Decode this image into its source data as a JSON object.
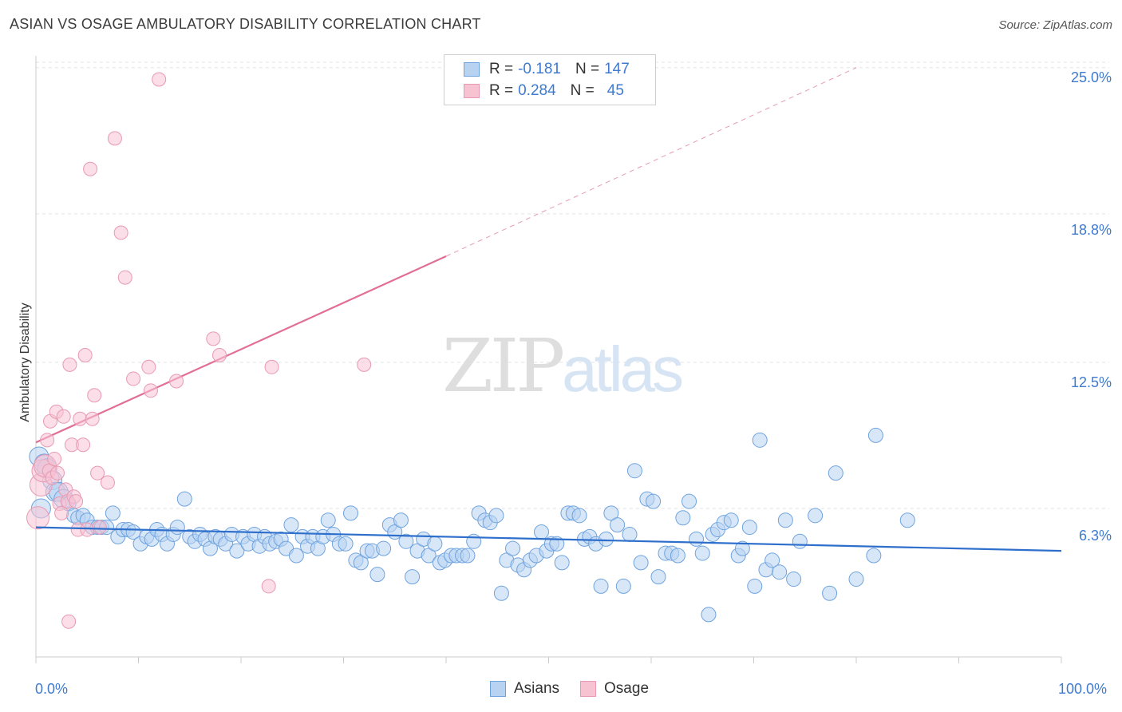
{
  "title": "ASIAN VS OSAGE AMBULATORY DISABILITY CORRELATION CHART",
  "source": "Source: ZipAtlas.com",
  "watermark": {
    "zip": "ZIP",
    "atlas": "atlas"
  },
  "legend": {
    "rows": [
      {
        "r_label": "R =",
        "r_value": "-0.181",
        "n_label": "N =",
        "n_value": "147"
      },
      {
        "r_label": "R =",
        "r_value": "0.284",
        "n_label": "N =",
        "n_value": "45"
      }
    ]
  },
  "bottom_legend": [
    "Asians",
    "Osage"
  ],
  "colors": {
    "asians_fill": "#b8d3f2",
    "asians_stroke": "#6fa3de",
    "asians_line": "#2f6fcc",
    "osage_fill": "#f7c3d3",
    "osage_stroke": "#e89ab3",
    "osage_line": "#e26d96",
    "tick_text": "#3f7ad0",
    "grid": "#e3e3e3"
  },
  "chart_data": {
    "type": "scatter",
    "title": "ASIAN VS OSAGE AMBULATORY DISABILITY CORRELATION CHART",
    "xlabel": "",
    "ylabel": "Ambulatory Disability",
    "x_tick_labels": [
      "0.0%",
      "100.0%"
    ],
    "y_tick_labels": [
      "6.3%",
      "12.5%",
      "18.8%",
      "25.0%"
    ],
    "y_ticks": [
      6.3,
      12.5,
      18.8,
      25.0
    ],
    "xlim": [
      0,
      100
    ],
    "ylim": [
      0,
      25.5
    ],
    "grid": true,
    "series": [
      {
        "name": "Asians",
        "R": -0.181,
        "N": 147,
        "trend": {
          "x": [
            0,
            100
          ],
          "y": [
            5.5,
            4.5
          ],
          "style": "solid"
        },
        "points": [
          [
            0.3,
            8.5
          ],
          [
            0.8,
            8.2
          ],
          [
            1.1,
            8.0
          ],
          [
            1.6,
            7.5
          ],
          [
            1.9,
            7.0
          ],
          [
            2.2,
            7.0
          ],
          [
            2.7,
            6.7
          ],
          [
            3.2,
            6.5
          ],
          [
            3.7,
            6.0
          ],
          [
            4.1,
            5.9
          ],
          [
            4.6,
            6.0
          ],
          [
            5.0,
            5.8
          ],
          [
            5.5,
            5.5
          ],
          [
            6.0,
            5.5
          ],
          [
            6.4,
            5.5
          ],
          [
            6.9,
            5.5
          ],
          [
            7.5,
            6.1
          ],
          [
            8.0,
            5.1
          ],
          [
            8.5,
            5.4
          ],
          [
            9.0,
            5.4
          ],
          [
            9.5,
            5.3
          ],
          [
            10.2,
            4.8
          ],
          [
            10.8,
            5.1
          ],
          [
            11.3,
            5.0
          ],
          [
            11.8,
            5.4
          ],
          [
            12.3,
            5.2
          ],
          [
            12.8,
            4.8
          ],
          [
            13.4,
            5.2
          ],
          [
            13.8,
            5.5
          ],
          [
            14.5,
            6.7
          ],
          [
            15.0,
            5.1
          ],
          [
            15.5,
            4.9
          ],
          [
            16.0,
            5.2
          ],
          [
            16.5,
            5.0
          ],
          [
            17.0,
            4.6
          ],
          [
            17.5,
            5.1
          ],
          [
            18.0,
            5.0
          ],
          [
            18.5,
            4.8
          ],
          [
            19.1,
            5.2
          ],
          [
            19.6,
            4.5
          ],
          [
            20.2,
            5.1
          ],
          [
            20.7,
            4.8
          ],
          [
            21.3,
            5.2
          ],
          [
            21.8,
            4.7
          ],
          [
            22.3,
            5.1
          ],
          [
            22.8,
            4.8
          ],
          [
            23.4,
            4.9
          ],
          [
            23.9,
            5.0
          ],
          [
            24.4,
            4.6
          ],
          [
            24.9,
            5.6
          ],
          [
            25.4,
            4.3
          ],
          [
            26.0,
            5.1
          ],
          [
            26.5,
            4.7
          ],
          [
            27.0,
            5.1
          ],
          [
            27.5,
            4.6
          ],
          [
            28.0,
            5.1
          ],
          [
            28.5,
            5.8
          ],
          [
            29.0,
            5.2
          ],
          [
            29.6,
            4.8
          ],
          [
            30.2,
            4.8
          ],
          [
            30.7,
            6.1
          ],
          [
            31.2,
            4.1
          ],
          [
            31.7,
            4.0
          ],
          [
            32.3,
            4.5
          ],
          [
            32.8,
            4.5
          ],
          [
            33.3,
            3.5
          ],
          [
            33.9,
            4.6
          ],
          [
            34.5,
            5.6
          ],
          [
            35.0,
            5.3
          ],
          [
            35.6,
            5.8
          ],
          [
            36.1,
            4.9
          ],
          [
            36.7,
            3.4
          ],
          [
            37.2,
            4.5
          ],
          [
            37.8,
            5.0
          ],
          [
            38.3,
            4.3
          ],
          [
            38.9,
            4.8
          ],
          [
            39.4,
            4.0
          ],
          [
            39.9,
            4.1
          ],
          [
            40.5,
            4.3
          ],
          [
            41.0,
            4.3
          ],
          [
            41.6,
            4.3
          ],
          [
            42.1,
            4.3
          ],
          [
            42.7,
            4.9
          ],
          [
            43.2,
            6.1
          ],
          [
            43.8,
            5.8
          ],
          [
            44.3,
            5.7
          ],
          [
            44.9,
            6.0
          ],
          [
            45.4,
            2.7
          ],
          [
            45.9,
            4.1
          ],
          [
            46.5,
            4.6
          ],
          [
            47.0,
            3.9
          ],
          [
            47.6,
            3.7
          ],
          [
            48.2,
            4.1
          ],
          [
            48.8,
            4.3
          ],
          [
            49.3,
            5.3
          ],
          [
            49.8,
            4.5
          ],
          [
            50.3,
            4.8
          ],
          [
            50.8,
            4.8
          ],
          [
            51.3,
            4.0
          ],
          [
            51.9,
            6.1
          ],
          [
            52.4,
            6.1
          ],
          [
            53.0,
            6.0
          ],
          [
            53.5,
            5.0
          ],
          [
            54.0,
            5.1
          ],
          [
            54.6,
            4.8
          ],
          [
            55.1,
            3.0
          ],
          [
            55.6,
            5.0
          ],
          [
            56.1,
            6.1
          ],
          [
            56.7,
            5.6
          ],
          [
            57.3,
            3.0
          ],
          [
            57.9,
            5.2
          ],
          [
            58.4,
            7.9
          ],
          [
            59.0,
            4.0
          ],
          [
            59.6,
            6.7
          ],
          [
            60.2,
            6.6
          ],
          [
            60.7,
            3.4
          ],
          [
            61.4,
            4.4
          ],
          [
            62.0,
            4.4
          ],
          [
            62.6,
            4.3
          ],
          [
            63.1,
            5.9
          ],
          [
            63.7,
            6.6
          ],
          [
            64.4,
            5.0
          ],
          [
            65.0,
            4.4
          ],
          [
            65.6,
            1.8
          ],
          [
            66.0,
            5.2
          ],
          [
            66.5,
            5.4
          ],
          [
            67.1,
            5.7
          ],
          [
            67.8,
            5.8
          ],
          [
            68.5,
            4.3
          ],
          [
            68.9,
            4.6
          ],
          [
            69.6,
            5.5
          ],
          [
            70.1,
            3.0
          ],
          [
            70.6,
            9.2
          ],
          [
            71.2,
            3.7
          ],
          [
            71.8,
            4.1
          ],
          [
            72.5,
            3.6
          ],
          [
            73.1,
            5.8
          ],
          [
            73.9,
            3.3
          ],
          [
            74.5,
            4.9
          ],
          [
            76.0,
            6.0
          ],
          [
            77.4,
            2.7
          ],
          [
            78.0,
            7.8
          ],
          [
            80.0,
            3.3
          ],
          [
            81.7,
            4.3
          ],
          [
            81.9,
            9.4
          ],
          [
            85.0,
            5.8
          ],
          [
            0.5,
            6.3
          ]
        ]
      },
      {
        "name": "Osage",
        "R": 0.284,
        "N": 45,
        "trend": {
          "x": [
            0,
            40,
            80
          ],
          "y": [
            9.1,
            17.0,
            25.0
          ],
          "style": "solid-then-dashed"
        },
        "points": [
          [
            0.2,
            5.9
          ],
          [
            0.5,
            7.3
          ],
          [
            0.7,
            7.9
          ],
          [
            0.9,
            8.1
          ],
          [
            1.1,
            9.2
          ],
          [
            1.3,
            7.9
          ],
          [
            1.4,
            10.0
          ],
          [
            1.6,
            7.6
          ],
          [
            1.8,
            8.4
          ],
          [
            2.0,
            10.4
          ],
          [
            2.1,
            7.8
          ],
          [
            2.3,
            6.5
          ],
          [
            2.5,
            6.1
          ],
          [
            2.7,
            10.2
          ],
          [
            2.9,
            7.1
          ],
          [
            3.1,
            6.6
          ],
          [
            3.3,
            12.4
          ],
          [
            3.5,
            9.0
          ],
          [
            3.7,
            6.8
          ],
          [
            3.9,
            6.6
          ],
          [
            4.1,
            5.4
          ],
          [
            4.3,
            10.1
          ],
          [
            4.6,
            9.0
          ],
          [
            4.8,
            12.8
          ],
          [
            5.0,
            5.4
          ],
          [
            5.3,
            20.7
          ],
          [
            5.5,
            10.1
          ],
          [
            5.7,
            11.1
          ],
          [
            6.0,
            7.8
          ],
          [
            6.2,
            5.5
          ],
          [
            7.0,
            7.4
          ],
          [
            7.7,
            22.0
          ],
          [
            8.3,
            18.0
          ],
          [
            8.7,
            16.1
          ],
          [
            9.5,
            11.8
          ],
          [
            11.0,
            12.3
          ],
          [
            11.2,
            11.3
          ],
          [
            12.0,
            24.5
          ],
          [
            13.7,
            11.7
          ],
          [
            17.3,
            13.5
          ],
          [
            17.9,
            12.8
          ],
          [
            22.7,
            3.0
          ],
          [
            23.0,
            12.3
          ],
          [
            32.0,
            12.4
          ],
          [
            3.2,
            1.5
          ]
        ]
      }
    ]
  }
}
